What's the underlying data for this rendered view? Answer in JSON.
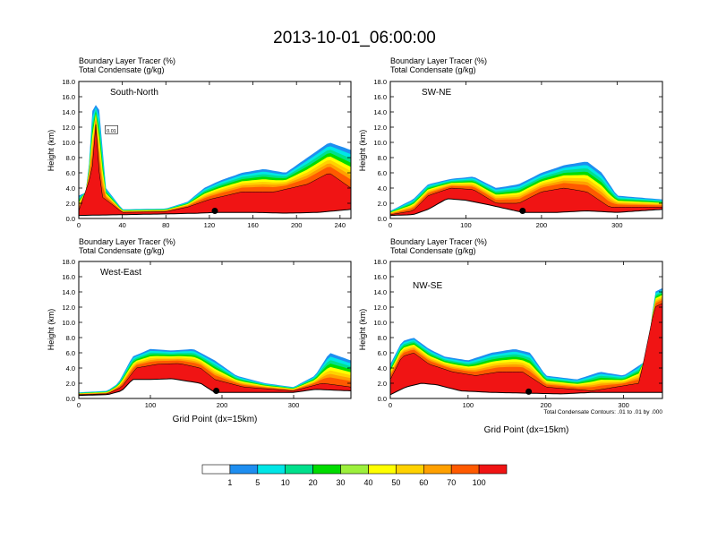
{
  "title": "2013-10-01_06:00:00",
  "chart_data": [
    {
      "type": "heatmap",
      "panel_title": "South-North",
      "left_string_1": "Boundary Layer Tracer   (%)",
      "left_string_2": "Total Condensate   (g/kg)",
      "ylabel": "Height (km)",
      "xlabel": "",
      "ylim": [
        0,
        18
      ],
      "yticks": [
        "0.0",
        "2.0",
        "4.0",
        "6.0",
        "8.0",
        "10.0",
        "12.0",
        "14.0",
        "16.0",
        "18.0"
      ],
      "xlim": [
        0,
        250
      ],
      "xticks": [
        0,
        40,
        80,
        120,
        160,
        200,
        240
      ],
      "contour_label": "0.01",
      "terrain": [
        [
          0,
          0.4
        ],
        [
          40,
          0.5
        ],
        [
          80,
          0.6
        ],
        [
          110,
          0.7
        ],
        [
          125,
          0.8
        ],
        [
          160,
          0.8
        ],
        [
          190,
          0.7
        ],
        [
          220,
          0.8
        ],
        [
          250,
          1.2
        ]
      ],
      "tracer_top": [
        [
          0,
          3.0
        ],
        [
          8,
          3.5
        ],
        [
          12,
          14
        ],
        [
          18,
          15.5
        ],
        [
          25,
          4
        ],
        [
          40,
          1.2
        ],
        [
          80,
          1.3
        ],
        [
          100,
          2.2
        ],
        [
          115,
          4.0
        ],
        [
          130,
          5.0
        ],
        [
          150,
          6.0
        ],
        [
          170,
          6.5
        ],
        [
          190,
          6.0
        ],
        [
          210,
          8.0
        ],
        [
          230,
          10.0
        ],
        [
          250,
          9.0
        ]
      ],
      "core_top": [
        [
          0,
          1.0
        ],
        [
          12,
          6
        ],
        [
          16,
          13
        ],
        [
          20,
          3
        ],
        [
          40,
          0.8
        ],
        [
          80,
          0.9
        ],
        [
          100,
          1.5
        ],
        [
          120,
          2.5
        ],
        [
          150,
          3.5
        ],
        [
          180,
          3.5
        ],
        [
          210,
          4.5
        ],
        [
          230,
          6.0
        ],
        [
          250,
          4.0
        ]
      ],
      "marker_x": 125
    },
    {
      "type": "heatmap",
      "panel_title": "SW-NE",
      "left_string_1": "Boundary Layer Tracer   (%)",
      "left_string_2": "Total Condensate   (g/kg)",
      "ylabel": "Height (km)",
      "xlabel": "",
      "ylim": [
        0,
        18
      ],
      "yticks": [
        "0.0",
        "2.0",
        "4.0",
        "6.0",
        "8.0",
        "10.0",
        "12.0",
        "14.0",
        "16.0",
        "18.0"
      ],
      "xlim": [
        0,
        360
      ],
      "xticks": [
        0,
        100,
        200,
        300
      ],
      "terrain": [
        [
          0,
          0.4
        ],
        [
          30,
          0.5
        ],
        [
          50,
          1.2
        ],
        [
          75,
          2.6
        ],
        [
          100,
          2.4
        ],
        [
          130,
          1.8
        ],
        [
          175,
          0.8
        ],
        [
          220,
          0.8
        ],
        [
          260,
          1.0
        ],
        [
          300,
          0.8
        ],
        [
          360,
          1.2
        ]
      ],
      "tracer_top": [
        [
          0,
          1.0
        ],
        [
          30,
          2.5
        ],
        [
          50,
          4.5
        ],
        [
          80,
          5.2
        ],
        [
          110,
          5.5
        ],
        [
          140,
          4.0
        ],
        [
          170,
          4.5
        ],
        [
          200,
          6.0
        ],
        [
          230,
          7.0
        ],
        [
          260,
          7.5
        ],
        [
          280,
          6.0
        ],
        [
          300,
          3.0
        ],
        [
          360,
          2.5
        ]
      ],
      "core_top": [
        [
          0,
          0.5
        ],
        [
          30,
          1.0
        ],
        [
          50,
          3.0
        ],
        [
          80,
          4.0
        ],
        [
          110,
          3.8
        ],
        [
          140,
          2.0
        ],
        [
          170,
          2.0
        ],
        [
          200,
          3.5
        ],
        [
          230,
          4.0
        ],
        [
          260,
          3.5
        ],
        [
          290,
          1.5
        ],
        [
          360,
          1.5
        ]
      ],
      "marker_x": 175
    },
    {
      "type": "heatmap",
      "panel_title": "West-East",
      "left_string_1": "Boundary Layer Tracer   (%)",
      "left_string_2": "Total Condensate   (g/kg)",
      "ylabel": "Height (km)",
      "xlabel": "Grid Point (dx=15km)",
      "ylim": [
        0,
        18
      ],
      "yticks": [
        "0.0",
        "2.0",
        "4.0",
        "6.0",
        "8.0",
        "10.0",
        "12.0",
        "14.0",
        "16.0",
        "18.0"
      ],
      "xlim": [
        0,
        380
      ],
      "xticks": [
        0,
        100,
        200,
        300
      ],
      "terrain": [
        [
          0,
          0.4
        ],
        [
          40,
          0.5
        ],
        [
          60,
          1.0
        ],
        [
          75,
          2.5
        ],
        [
          100,
          2.5
        ],
        [
          130,
          2.6
        ],
        [
          170,
          2.0
        ],
        [
          190,
          0.8
        ],
        [
          250,
          0.8
        ],
        [
          300,
          0.8
        ],
        [
          330,
          1.2
        ],
        [
          380,
          1.0
        ]
      ],
      "tracer_top": [
        [
          0,
          0.8
        ],
        [
          40,
          1.0
        ],
        [
          55,
          2.0
        ],
        [
          75,
          5.5
        ],
        [
          100,
          6.5
        ],
        [
          130,
          6.3
        ],
        [
          160,
          6.5
        ],
        [
          190,
          5.0
        ],
        [
          220,
          3.0
        ],
        [
          260,
          2.0
        ],
        [
          300,
          1.5
        ],
        [
          330,
          3.0
        ],
        [
          350,
          6.0
        ],
        [
          380,
          5.0
        ]
      ],
      "core_top": [
        [
          0,
          0.5
        ],
        [
          40,
          0.6
        ],
        [
          60,
          1.5
        ],
        [
          80,
          4.0
        ],
        [
          110,
          4.5
        ],
        [
          140,
          4.6
        ],
        [
          170,
          4.0
        ],
        [
          190,
          2.5
        ],
        [
          230,
          1.5
        ],
        [
          300,
          1.0
        ],
        [
          340,
          2.0
        ],
        [
          380,
          1.5
        ]
      ],
      "marker_x": 192
    },
    {
      "type": "heatmap",
      "panel_title": "NW-SE",
      "left_string_1": "Boundary Layer Tracer   (%)",
      "left_string_2": "Total Condensate   (g/kg)",
      "ylabel": "Height (km)",
      "xlabel": "Grid Point (dx=15km)",
      "ylim": [
        0,
        18
      ],
      "yticks": [
        "0.0",
        "2.0",
        "4.0",
        "6.0",
        "8.0",
        "10.0",
        "12.0",
        "14.0",
        "16.0",
        "18.0"
      ],
      "xlim": [
        0,
        350
      ],
      "xticks": [
        0,
        100,
        200,
        300
      ],
      "terrain": [
        [
          0,
          0.5
        ],
        [
          20,
          1.5
        ],
        [
          40,
          2.0
        ],
        [
          60,
          1.8
        ],
        [
          90,
          1.0
        ],
        [
          130,
          0.8
        ],
        [
          175,
          0.7
        ],
        [
          220,
          0.6
        ],
        [
          260,
          0.8
        ],
        [
          300,
          0.8
        ],
        [
          350,
          0.8
        ]
      ],
      "tracer_top": [
        [
          0,
          4.5
        ],
        [
          15,
          7.5
        ],
        [
          30,
          8.0
        ],
        [
          50,
          6.5
        ],
        [
          70,
          5.5
        ],
        [
          100,
          5.0
        ],
        [
          130,
          6.0
        ],
        [
          160,
          6.5
        ],
        [
          180,
          6.0
        ],
        [
          200,
          3.0
        ],
        [
          240,
          2.5
        ],
        [
          270,
          3.5
        ],
        [
          300,
          3.0
        ],
        [
          330,
          5.0
        ],
        [
          340,
          14.0
        ],
        [
          350,
          14.5
        ]
      ],
      "core_top": [
        [
          0,
          2.5
        ],
        [
          15,
          5.5
        ],
        [
          30,
          6.0
        ],
        [
          50,
          4.5
        ],
        [
          80,
          3.5
        ],
        [
          110,
          3.0
        ],
        [
          140,
          3.5
        ],
        [
          170,
          3.5
        ],
        [
          200,
          1.5
        ],
        [
          260,
          1.0
        ],
        [
          320,
          2.0
        ],
        [
          340,
          12.0
        ],
        [
          350,
          12.5
        ]
      ],
      "marker_x": 178
    }
  ],
  "footnote": "Total Condensate Contours: .01 to .01 by .000",
  "colorbar": {
    "labels": [
      "1",
      "5",
      "10",
      "20",
      "30",
      "40",
      "50",
      "60",
      "70",
      "100"
    ],
    "colors": [
      "#ffffff",
      "#1e8ef0",
      "#00e6e6",
      "#00e08c",
      "#00dc00",
      "#9cf03c",
      "#ffff00",
      "#ffd200",
      "#ffa000",
      "#ff5a00",
      "#f01414"
    ]
  }
}
